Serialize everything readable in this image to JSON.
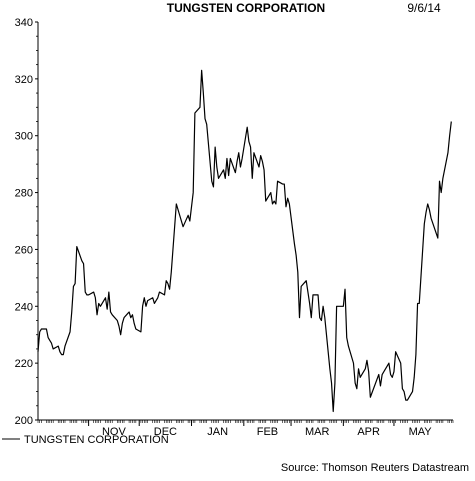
{
  "header": {
    "title": "TUNGSTEN CORPORATION",
    "date": "9/6/14"
  },
  "footer": {
    "source": "Source: Thomson Reuters Datastream"
  },
  "chart_data": {
    "type": "line",
    "title": "TUNGSTEN CORPORATION",
    "xlabel": "",
    "ylabel": "",
    "ylim": [
      200,
      340
    ],
    "yticks": [
      200,
      220,
      240,
      260,
      280,
      300,
      320,
      340
    ],
    "xlim": [
      "2013-10-02",
      "2014-06-05"
    ],
    "x_month_labels": [
      {
        "label": "NOV",
        "date": "2013-11-01"
      },
      {
        "label": "DEC",
        "date": "2013-12-01"
      },
      {
        "label": "JAN",
        "date": "2014-01-01"
      },
      {
        "label": "FEB",
        "date": "2014-02-01"
      },
      {
        "label": "MAR",
        "date": "2014-03-01"
      },
      {
        "label": "APR",
        "date": "2014-04-01"
      },
      {
        "label": "MAY",
        "date": "2014-05-01"
      }
    ],
    "grid": false,
    "legend": "bottom-left",
    "series": [
      {
        "name": "TUNGSTEN CORPORATION",
        "color": "#000000",
        "points": [
          [
            "2013-10-02",
            224
          ],
          [
            "2013-10-03",
            231
          ],
          [
            "2013-10-04",
            232
          ],
          [
            "2013-10-07",
            232
          ],
          [
            "2013-10-08",
            229
          ],
          [
            "2013-10-09",
            228
          ],
          [
            "2013-10-10",
            227
          ],
          [
            "2013-10-11",
            225
          ],
          [
            "2013-10-14",
            226
          ],
          [
            "2013-10-15",
            224
          ],
          [
            "2013-10-16",
            223
          ],
          [
            "2013-10-17",
            223
          ],
          [
            "2013-10-18",
            226
          ],
          [
            "2013-10-21",
            231
          ],
          [
            "2013-10-22",
            238
          ],
          [
            "2013-10-23",
            247
          ],
          [
            "2013-10-24",
            248
          ],
          [
            "2013-10-25",
            261
          ],
          [
            "2013-10-28",
            256
          ],
          [
            "2013-10-29",
            255
          ],
          [
            "2013-10-30",
            245
          ],
          [
            "2013-10-31",
            244
          ],
          [
            "2013-11-01",
            244
          ],
          [
            "2013-11-04",
            245
          ],
          [
            "2013-11-05",
            243
          ],
          [
            "2013-11-06",
            237
          ],
          [
            "2013-11-07",
            241
          ],
          [
            "2013-11-08",
            240
          ],
          [
            "2013-11-11",
            243
          ],
          [
            "2013-11-12",
            239
          ],
          [
            "2013-11-13",
            245
          ],
          [
            "2013-11-14",
            238
          ],
          [
            "2013-11-15",
            237
          ],
          [
            "2013-11-18",
            235
          ],
          [
            "2013-11-19",
            233
          ],
          [
            "2013-11-20",
            230
          ],
          [
            "2013-11-21",
            234
          ],
          [
            "2013-11-22",
            236
          ],
          [
            "2013-11-25",
            238
          ],
          [
            "2013-11-26",
            236
          ],
          [
            "2013-11-27",
            237
          ],
          [
            "2013-11-28",
            234
          ],
          [
            "2013-11-29",
            232
          ],
          [
            "2013-12-02",
            231
          ],
          [
            "2013-12-03",
            240
          ],
          [
            "2013-12-04",
            243
          ],
          [
            "2013-12-05",
            240
          ],
          [
            "2013-12-06",
            242
          ],
          [
            "2013-12-09",
            243
          ],
          [
            "2013-12-10",
            241
          ],
          [
            "2013-12-11",
            242
          ],
          [
            "2013-12-12",
            243
          ],
          [
            "2013-12-13",
            245
          ],
          [
            "2013-12-16",
            244
          ],
          [
            "2013-12-17",
            249
          ],
          [
            "2013-12-18",
            248
          ],
          [
            "2013-12-19",
            246
          ],
          [
            "2013-12-20",
            252
          ],
          [
            "2013-12-23",
            276
          ],
          [
            "2013-12-24",
            274
          ],
          [
            "2013-12-27",
            268
          ],
          [
            "2013-12-30",
            272
          ],
          [
            "2013-12-31",
            270
          ],
          [
            "2014-01-02",
            280
          ],
          [
            "2014-01-03",
            308
          ],
          [
            "2014-01-06",
            310
          ],
          [
            "2014-01-07",
            323
          ],
          [
            "2014-01-08",
            315
          ],
          [
            "2014-01-09",
            306
          ],
          [
            "2014-01-10",
            304
          ],
          [
            "2014-01-13",
            284
          ],
          [
            "2014-01-14",
            282
          ],
          [
            "2014-01-15",
            296
          ],
          [
            "2014-01-16",
            289
          ],
          [
            "2014-01-17",
            285
          ],
          [
            "2014-01-20",
            288
          ],
          [
            "2014-01-21",
            285
          ],
          [
            "2014-01-22",
            292
          ],
          [
            "2014-01-23",
            286
          ],
          [
            "2014-01-24",
            292
          ],
          [
            "2014-01-27",
            287
          ],
          [
            "2014-01-28",
            291
          ],
          [
            "2014-01-29",
            294
          ],
          [
            "2014-01-30",
            289
          ],
          [
            "2014-01-31",
            292
          ],
          [
            "2014-02-03",
            303
          ],
          [
            "2014-02-04",
            298
          ],
          [
            "2014-02-05",
            296
          ],
          [
            "2014-02-06",
            285
          ],
          [
            "2014-02-07",
            294
          ],
          [
            "2014-02-10",
            289
          ],
          [
            "2014-02-11",
            293
          ],
          [
            "2014-02-12",
            291
          ],
          [
            "2014-02-13",
            288
          ],
          [
            "2014-02-14",
            277
          ],
          [
            "2014-02-17",
            280
          ],
          [
            "2014-02-18",
            276
          ],
          [
            "2014-02-19",
            277
          ],
          [
            "2014-02-20",
            276
          ],
          [
            "2014-02-21",
            284
          ],
          [
            "2014-02-24",
            283
          ],
          [
            "2014-02-25",
            283
          ],
          [
            "2014-02-26",
            275
          ],
          [
            "2014-02-27",
            278
          ],
          [
            "2014-02-28",
            276
          ],
          [
            "2014-03-03",
            262
          ],
          [
            "2014-03-04",
            258
          ],
          [
            "2014-03-05",
            252
          ],
          [
            "2014-03-06",
            236
          ],
          [
            "2014-03-07",
            247
          ],
          [
            "2014-03-10",
            249
          ],
          [
            "2014-03-11",
            245
          ],
          [
            "2014-03-12",
            241
          ],
          [
            "2014-03-13",
            236
          ],
          [
            "2014-03-14",
            244
          ],
          [
            "2014-03-17",
            244
          ],
          [
            "2014-03-18",
            236
          ],
          [
            "2014-03-19",
            235
          ],
          [
            "2014-03-20",
            240
          ],
          [
            "2014-03-21",
            236
          ],
          [
            "2014-03-24",
            218
          ],
          [
            "2014-03-25",
            213
          ],
          [
            "2014-03-26",
            203
          ],
          [
            "2014-03-27",
            213
          ],
          [
            "2014-03-28",
            240
          ],
          [
            "2014-03-31",
            240
          ],
          [
            "2014-04-01",
            240
          ],
          [
            "2014-04-02",
            246
          ],
          [
            "2014-04-03",
            229
          ],
          [
            "2014-04-04",
            226
          ],
          [
            "2014-04-07",
            220
          ],
          [
            "2014-04-08",
            213
          ],
          [
            "2014-04-09",
            211
          ],
          [
            "2014-04-10",
            218
          ],
          [
            "2014-04-11",
            215
          ],
          [
            "2014-04-14",
            218
          ],
          [
            "2014-04-15",
            221
          ],
          [
            "2014-04-16",
            217
          ],
          [
            "2014-04-17",
            208
          ],
          [
            "2014-04-22",
            216
          ],
          [
            "2014-04-23",
            212
          ],
          [
            "2014-04-24",
            216
          ],
          [
            "2014-04-25",
            217
          ],
          [
            "2014-04-28",
            220
          ],
          [
            "2014-04-29",
            216
          ],
          [
            "2014-04-30",
            215
          ],
          [
            "2014-05-01",
            217
          ],
          [
            "2014-05-02",
            224
          ],
          [
            "2014-05-05",
            220
          ],
          [
            "2014-05-06",
            211
          ],
          [
            "2014-05-07",
            210
          ],
          [
            "2014-05-08",
            207
          ],
          [
            "2014-05-09",
            207
          ],
          [
            "2014-05-12",
            210
          ],
          [
            "2014-05-13",
            215
          ],
          [
            "2014-05-14",
            223
          ],
          [
            "2014-05-15",
            241
          ],
          [
            "2014-05-16",
            241
          ],
          [
            "2014-05-19",
            269
          ],
          [
            "2014-05-20",
            273
          ],
          [
            "2014-05-21",
            276
          ],
          [
            "2014-05-22",
            274
          ],
          [
            "2014-05-23",
            271
          ],
          [
            "2014-05-27",
            264
          ],
          [
            "2014-05-28",
            284
          ],
          [
            "2014-05-29",
            280
          ],
          [
            "2014-05-30",
            285
          ],
          [
            "2014-06-02",
            294
          ],
          [
            "2014-06-03",
            300
          ],
          [
            "2014-06-04",
            305
          ]
        ]
      }
    ]
  }
}
